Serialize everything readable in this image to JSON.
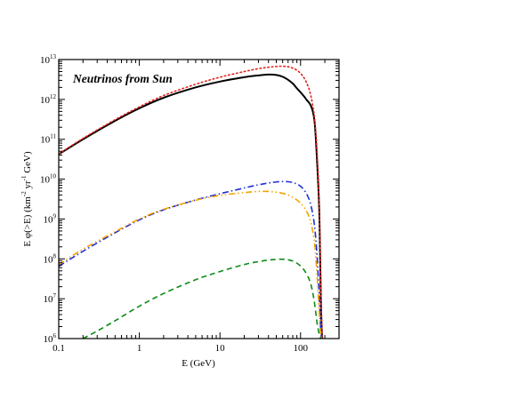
{
  "chart_data": {
    "type": "line",
    "title": "",
    "annotation": "Neutrinos from Sun",
    "xlabel": "E (GeV)",
    "ylabel": {
      "parts": [
        "E φ(>E)  (km",
        "-2",
        " yr",
        "-1",
        " GeV)"
      ]
    },
    "xscale": "log",
    "yscale": "log",
    "xlim": [
      0.1,
      300
    ],
    "ylim": [
      1000000.0,
      10000000000000.0
    ],
    "grid": false,
    "x_tick_labels": [
      "0.1",
      "1",
      "10",
      "100"
    ],
    "y_tick_labels": [
      {
        "base": "10",
        "exp": "6"
      },
      {
        "base": "10",
        "exp": "7"
      },
      {
        "base": "10",
        "exp": "8"
      },
      {
        "base": "10",
        "exp": "9"
      },
      {
        "base": "10",
        "exp": "10"
      },
      {
        "base": "10",
        "exp": "11"
      },
      {
        "base": "10",
        "exp": "12"
      },
      {
        "base": "10",
        "exp": "13"
      }
    ],
    "series": [
      {
        "style": "solid",
        "color": "#000000",
        "x": [
          0.1,
          0.2,
          0.5,
          1,
          2,
          5,
          10,
          20,
          30,
          40,
          50,
          60,
          70,
          80,
          90,
          100,
          110,
          120,
          130,
          140,
          150,
          160,
          170,
          175,
          180,
          185
        ],
        "y": [
          42000000000.0,
          100000000000.0,
          290000000000.0,
          600000000000.0,
          1100000000000.0,
          2000000000000.0,
          2800000000000.0,
          3600000000000.0,
          4000000000000.0,
          4200000000000.0,
          4100000000000.0,
          3700000000000.0,
          3100000000000.0,
          2500000000000.0,
          1900000000000.0,
          1500000000000.0,
          1200000000000.0,
          950000000000.0,
          780000000000.0,
          550000000000.0,
          250000000000.0,
          30000000000.0,
          2000000000.0,
          100000000.0,
          5000000.0,
          1000000.0
        ]
      },
      {
        "style": "dotted",
        "color": "#e4211c",
        "x": [
          0.1,
          0.2,
          0.5,
          1,
          2,
          5,
          10,
          20,
          30,
          40,
          50,
          60,
          70,
          80,
          90,
          100,
          110,
          120,
          130,
          140,
          150,
          160,
          170,
          175,
          180,
          185
        ],
        "y": [
          43000000000.0,
          105000000000.0,
          310000000000.0,
          650000000000.0,
          1250000000000.0,
          2400000000000.0,
          3600000000000.0,
          5000000000000.0,
          5900000000000.0,
          6400000000000.0,
          6700000000000.0,
          6800000000000.0,
          6600000000000.0,
          6100000000000.0,
          5400000000000.0,
          4500000000000.0,
          3500000000000.0,
          2500000000000.0,
          1600000000000.0,
          800000000000.0,
          300000000000.0,
          50000000000.0,
          3000000000.0,
          150000000.0,
          8000000.0,
          1000000.0
        ]
      },
      {
        "style": "dashdot",
        "color": "#1f2fd6",
        "x": [
          0.1,
          0.2,
          0.5,
          1,
          2,
          5,
          10,
          20,
          30,
          40,
          50,
          60,
          70,
          80,
          90,
          100,
          110,
          120,
          130,
          140,
          150,
          160,
          170,
          175,
          180,
          185
        ],
        "y": [
          65000000.0,
          155000000.0,
          450000000.0,
          950000000.0,
          1700000000.0,
          3000000000.0,
          4300000000.0,
          6000000000.0,
          7200000000.0,
          8000000000.0,
          8500000000.0,
          8700000000.0,
          8600000000.0,
          8200000000.0,
          7500000000.0,
          6600000000.0,
          5400000000.0,
          4100000000.0,
          2800000000.0,
          1500000000.0,
          600000000.0,
          120000000.0,
          12000000.0,
          3000000.0,
          1200000.0,
          1000000.0
        ]
      },
      {
        "style": "dashdotdot",
        "color": "#f5a300",
        "x": [
          0.1,
          0.2,
          0.5,
          1,
          2,
          5,
          10,
          20,
          30,
          40,
          50,
          60,
          70,
          80,
          90,
          100,
          110,
          120,
          130,
          140,
          150,
          160,
          170,
          175,
          180,
          185
        ],
        "y": [
          72000000.0,
          175000000.0,
          480000000.0,
          1000000000.0,
          1750000000.0,
          2950000000.0,
          3900000000.0,
          4600000000.0,
          4900000000.0,
          4900000000.0,
          4700000000.0,
          4400000000.0,
          4000000000.0,
          3500000000.0,
          3000000000.0,
          2500000000.0,
          2000000000.0,
          1500000000.0,
          1000000000.0,
          550000000.0,
          220000000.0,
          40000000.0,
          5000000.0,
          1800000.0,
          1100000.0,
          1000000.0
        ]
      },
      {
        "style": "dashed",
        "color": "#0e8a16",
        "x": [
          0.2,
          0.3,
          0.5,
          1,
          2,
          5,
          10,
          20,
          30,
          40,
          50,
          60,
          70,
          80,
          90,
          100,
          110,
          120,
          130,
          140,
          150,
          160,
          170,
          175,
          180,
          185
        ],
        "y": [
          1000000.0,
          1550000.0,
          2800000.0,
          6500000.0,
          13500000.0,
          30000000.0,
          48000000.0,
          72000000.0,
          85000000.0,
          93000000.0,
          97000000.0,
          98000000.0,
          95000000.0,
          88000000.0,
          78000000.0,
          66000000.0,
          53000000.0,
          40000000.0,
          28000000.0,
          16000000.0,
          7000000.0,
          2500000.0,
          1300000.0,
          1100000.0,
          1000000.0,
          1000000.0
        ]
      }
    ]
  }
}
